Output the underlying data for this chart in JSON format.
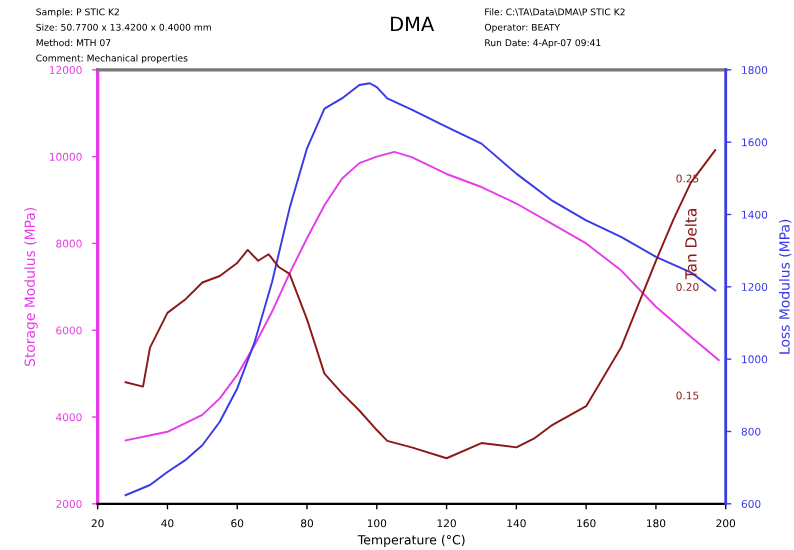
{
  "chart_data": {
    "type": "line",
    "title": "DMA",
    "annotations": [
      "Sample: P STIC K2",
      "Size: 50.7700 x 13.4200 x 0.4000 mm",
      "Method: MTH 07",
      "Comment: Mechanical properties",
      "File: C:\\TA\\Data\\DMA\\P STIC K2",
      "Operator: BEATY",
      "Run Date: 4-Apr-07 09:41"
    ],
    "xlabel": "Temperature (°C)",
    "ylabel": "Storage Modulus (MPa)",
    "y2label": "Loss Modulus (MPa)",
    "y3label": "Tan Delta",
    "xlim": [
      20,
      200
    ],
    "xticks": [
      20,
      40,
      60,
      80,
      100,
      120,
      140,
      160,
      180,
      200
    ],
    "ylim": [
      2000,
      12000
    ],
    "yticks": [
      2000,
      4000,
      6000,
      8000,
      10000,
      12000
    ],
    "y2lim": [
      600,
      1800
    ],
    "y2ticks": [
      600,
      800,
      1000,
      1200,
      1400,
      1600,
      1800
    ],
    "y3lim": [
      0.1,
      0.3
    ],
    "y3ticks": [
      0.15,
      {
        "value": 0.2,
        "label": "0.20"
      },
      0.25
    ],
    "grid": false,
    "legend": false,
    "marker": "none",
    "line_style": "solid",
    "series": [
      {
        "color": "#e83ce8",
        "x": [
          28,
          40,
          50,
          55,
          60,
          65,
          70,
          75,
          80,
          85,
          90,
          95,
          100,
          105,
          110,
          120,
          130,
          140,
          150,
          160,
          170,
          180,
          190,
          198
        ],
        "values": [
          3460,
          3660,
          4050,
          4430,
          4970,
          5660,
          6430,
          7310,
          8120,
          8880,
          9490,
          9850,
          10000,
          10110,
          9990,
          9600,
          9300,
          8920,
          8460,
          8000,
          7380,
          6540,
          5850,
          5310
        ]
      },
      {
        "color": "#3a3ae8",
        "axis": "y2",
        "x": [
          28,
          35,
          40,
          45,
          50,
          55,
          60,
          65,
          70,
          75,
          80,
          85,
          90,
          95,
          98,
          100,
          103,
          110,
          120,
          130,
          140,
          150,
          160,
          170,
          180,
          190,
          197
        ],
        "values": [
          624,
          652,
          688,
          720,
          762,
          827,
          919,
          1048,
          1214,
          1417,
          1583,
          1693,
          1721,
          1758,
          1763,
          1752,
          1721,
          1690,
          1642,
          1596,
          1513,
          1440,
          1384,
          1338,
          1283,
          1240,
          1190
        ]
      },
      {
        "color": "#8b1a1a",
        "axis": "y3",
        "x": [
          28,
          33,
          35,
          40,
          45,
          50,
          55,
          60,
          63,
          66,
          69,
          72,
          75,
          80,
          85,
          90,
          95,
          100,
          103,
          110,
          120,
          130,
          140,
          145,
          150,
          160,
          170,
          175,
          180,
          185,
          190,
          197
        ],
        "values": [
          0.156,
          0.154,
          0.172,
          0.188,
          0.194,
          0.202,
          0.205,
          0.211,
          0.217,
          0.212,
          0.215,
          0.209,
          0.206,
          0.185,
          0.16,
          0.151,
          0.143,
          0.134,
          0.129,
          0.126,
          0.121,
          0.128,
          0.126,
          0.13,
          0.136,
          0.145,
          0.172,
          0.192,
          0.212,
          0.231,
          0.248,
          0.263
        ]
      }
    ]
  }
}
